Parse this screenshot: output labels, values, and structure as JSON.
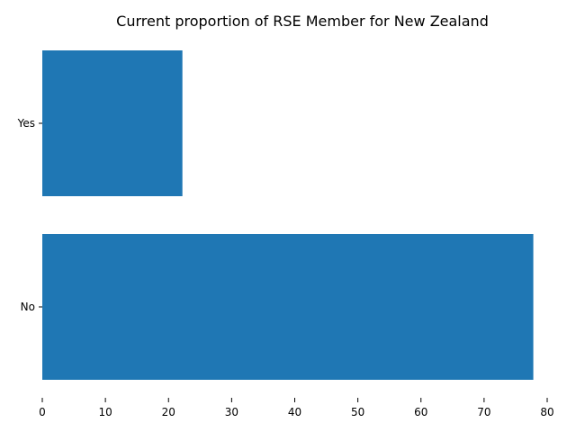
{
  "chart_data": {
    "type": "bar",
    "orientation": "horizontal",
    "title": "Current proportion of RSE Member for New Zealand",
    "xlabel": "",
    "ylabel": "",
    "categories": [
      "No",
      "Yes"
    ],
    "values": [
      77.8,
      22.2
    ],
    "xlim": [
      0,
      80
    ],
    "x_ticks": [
      0,
      10,
      20,
      30,
      40,
      50,
      60,
      70,
      80
    ],
    "grid": false,
    "legend": "none",
    "bar_color": "#1f77b4"
  }
}
